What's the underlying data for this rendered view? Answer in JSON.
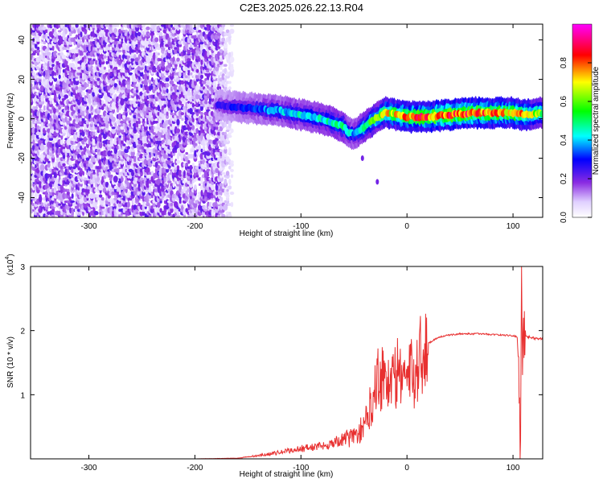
{
  "title": "C2E3.2025.026.22.13.R04",
  "chart_data": [
    {
      "type": "heatmap",
      "name": "spectrogram",
      "xlabel": "Height of straight line (km)",
      "ylabel": "Frequency (Hz)",
      "xlim": [
        -355,
        128
      ],
      "ylim": [
        -50,
        48
      ],
      "xticks": [
        -300,
        -200,
        -100,
        0,
        100
      ],
      "yticks": [
        -40,
        -20,
        0,
        20,
        40
      ],
      "colorbar": {
        "label": "Normalized spectral amplitude",
        "range": [
          0.0,
          1.0
        ],
        "ticks": [
          0.0,
          0.2,
          0.4,
          0.6,
          0.8
        ],
        "tick_labels": [
          "0.0",
          "0.2",
          "0.4",
          "0.6",
          "0.8"
        ],
        "colormap": [
          "#ffffff",
          "#e8d8ff",
          "#8a2be2",
          "#0000ff",
          "#00ffff",
          "#00ff00",
          "#ffff00",
          "#ff0000",
          "#ff00ff"
        ]
      },
      "noise_region": {
        "x_range": [
          -355,
          -160
        ],
        "typical_amplitude": 0.12
      },
      "signal_ridge": {
        "x": [
          -180,
          -160,
          -140,
          -120,
          -100,
          -80,
          -60,
          -55,
          -50,
          -40,
          -30,
          -20,
          -10,
          0,
          20,
          40,
          60,
          80,
          100,
          110,
          128
        ],
        "freq": [
          7,
          6,
          5,
          4,
          2,
          0,
          -4,
          -7,
          -8,
          -4,
          0,
          3,
          2,
          1,
          1,
          2,
          3,
          3,
          3,
          2,
          3
        ],
        "amplitude": [
          0.25,
          0.3,
          0.35,
          0.4,
          0.45,
          0.45,
          0.5,
          0.45,
          0.4,
          0.55,
          0.6,
          0.7,
          0.75,
          0.8,
          0.85,
          0.85,
          0.85,
          0.8,
          0.8,
          0.75,
          0.6
        ]
      },
      "isolated_spots": [
        {
          "x": -42,
          "freq": -20
        },
        {
          "x": -28,
          "freq": -32
        }
      ]
    },
    {
      "type": "line",
      "name": "snr",
      "xlabel": "Height of straight line (km)",
      "ylabel": "SNR (10 * v/v)",
      "y_multiplier_label": "(x10",
      "y_multiplier_exp": "4",
      "y_multiplier_close": ")",
      "xlim": [
        -355,
        128
      ],
      "ylim": [
        0,
        3
      ],
      "xticks": [
        -300,
        -200,
        -100,
        0,
        100
      ],
      "yticks": [
        1,
        2,
        3
      ],
      "color": "#e83030",
      "series": [
        {
          "x": [
            -355,
            -300,
            -200,
            -160,
            -140,
            -120,
            -100,
            -80,
            -60,
            -50,
            -40,
            -35,
            -30,
            -25,
            -20,
            -15,
            -10,
            -5,
            0,
            5,
            10,
            15,
            20,
            30,
            40,
            50,
            60,
            70,
            80,
            90,
            100,
            104,
            106,
            107,
            108,
            109,
            110,
            112,
            115,
            120,
            128
          ],
          "y": [
            0.0,
            0.0,
            0.0,
            0.01,
            0.05,
            0.1,
            0.16,
            0.2,
            0.3,
            0.35,
            0.5,
            0.8,
            1.2,
            1.35,
            1.25,
            1.2,
            1.3,
            1.4,
            1.25,
            1.3,
            1.5,
            1.7,
            1.8,
            1.9,
            1.93,
            1.95,
            1.95,
            1.95,
            1.94,
            1.93,
            1.92,
            1.9,
            1.2,
            0.1,
            3.0,
            1.5,
            1.95,
            1.92,
            1.9,
            1.88,
            1.87
          ]
        }
      ]
    }
  ]
}
